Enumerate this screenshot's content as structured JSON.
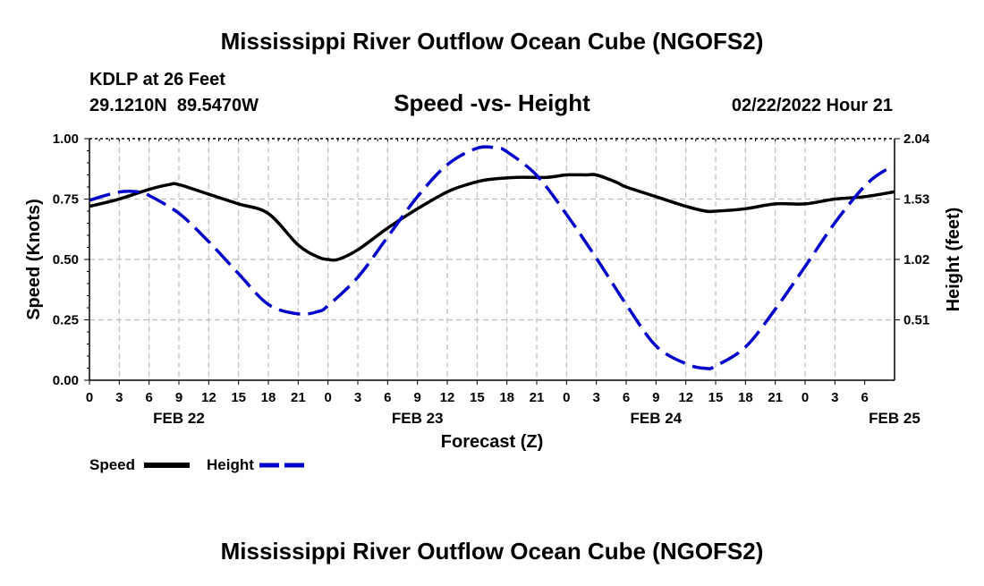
{
  "header": {
    "title": "Mississippi River Outflow Ocean Cube (NGOFS2)",
    "station": "KDLP at 26 Feet",
    "coords": "29.1210N  89.5470W",
    "subtitle": "Speed -vs- Height",
    "datetime": "02/22/2022 Hour 21"
  },
  "footer": {
    "title": "Mississippi River Outflow Ocean Cube (NGOFS2)"
  },
  "chart_data": {
    "type": "line",
    "title": "Speed -vs- Height",
    "xlabel": "Forecast (Z)",
    "ylabel": "Speed (Knots)",
    "y2label": "Height (feet)",
    "x_hours": [
      0,
      81
    ],
    "ylim": [
      0,
      1
    ],
    "y2lim": [
      0,
      2.04
    ],
    "grid": true,
    "x_tick_labels": [
      "0",
      "3",
      "6",
      "9",
      "12",
      "15",
      "18",
      "21",
      "0",
      "3",
      "6",
      "9",
      "12",
      "15",
      "18",
      "21",
      "0",
      "3",
      "6",
      "9",
      "12",
      "15",
      "18",
      "21",
      "0",
      "3",
      "6"
    ],
    "date_labels": [
      {
        "label": "FEB 22",
        "hour": 9
      },
      {
        "label": "FEB 23",
        "hour": 33
      },
      {
        "label": "FEB 24",
        "hour": 57
      },
      {
        "label": "FEB 25",
        "hour": 81
      }
    ],
    "y_ticks": [
      {
        "value": 0.0,
        "label": "0.00"
      },
      {
        "value": 0.25,
        "label": "0.25"
      },
      {
        "value": 0.5,
        "label": "0.50"
      },
      {
        "value": 0.75,
        "label": "0.75"
      },
      {
        "value": 1.0,
        "label": "1.00"
      }
    ],
    "y2_ticks": [
      {
        "value": 0.51,
        "label": "0.51"
      },
      {
        "value": 1.02,
        "label": "1.02"
      },
      {
        "value": 1.53,
        "label": "1.53"
      },
      {
        "value": 2.04,
        "label": "2.04"
      }
    ],
    "series": [
      {
        "name": "Speed",
        "axis": "left",
        "color": "#000000",
        "dashed": false,
        "x": [
          0,
          3,
          6,
          8,
          9,
          12,
          15,
          18,
          21,
          23,
          24,
          25,
          27,
          30,
          33,
          36,
          38,
          40,
          43,
          46,
          48,
          50,
          51,
          53,
          54,
          57,
          60,
          62,
          63,
          66,
          69,
          72,
          75,
          78,
          81
        ],
        "values": [
          0.72,
          0.75,
          0.79,
          0.81,
          0.81,
          0.77,
          0.73,
          0.69,
          0.56,
          0.51,
          0.5,
          0.5,
          0.54,
          0.63,
          0.71,
          0.78,
          0.81,
          0.83,
          0.84,
          0.84,
          0.85,
          0.85,
          0.85,
          0.82,
          0.8,
          0.76,
          0.72,
          0.7,
          0.7,
          0.71,
          0.73,
          0.73,
          0.75,
          0.76,
          0.78
        ]
      },
      {
        "name": "Height",
        "axis": "right",
        "color": "#0000cc",
        "dashed": true,
        "x": [
          0,
          3,
          5,
          6,
          9,
          12,
          15,
          18,
          21,
          23,
          24,
          27,
          30,
          33,
          36,
          39,
          41,
          42,
          45,
          48,
          51,
          54,
          57,
          60,
          62,
          63,
          66,
          69,
          72,
          75,
          78,
          80,
          81
        ],
        "values": [
          1.52,
          1.59,
          1.59,
          1.56,
          1.41,
          1.17,
          0.9,
          0.64,
          0.56,
          0.58,
          0.63,
          0.87,
          1.21,
          1.55,
          1.82,
          1.96,
          1.96,
          1.93,
          1.73,
          1.4,
          1.03,
          0.64,
          0.29,
          0.14,
          0.1,
          0.12,
          0.28,
          0.6,
          0.96,
          1.33,
          1.64,
          1.77,
          1.79
        ]
      }
    ]
  },
  "legend": {
    "speed_label": "Speed",
    "height_label": "Height"
  }
}
